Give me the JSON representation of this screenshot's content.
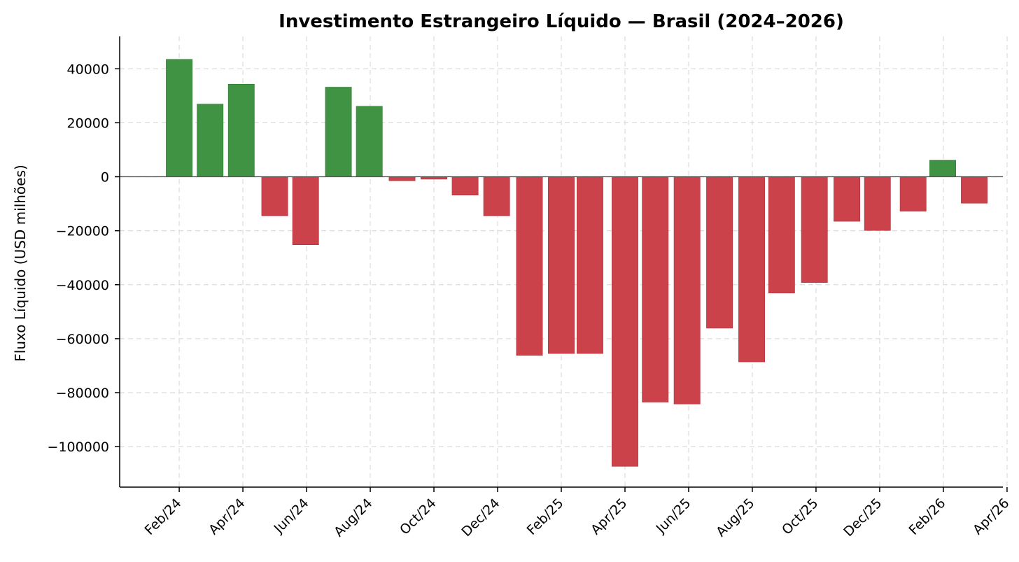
{
  "chart_data": {
    "type": "bar",
    "title": "Investimento Estrangeiro Líquido — Brasil (2024–2026)",
    "xlabel": "",
    "ylabel": "Fluxo Líquido (USD milhões)",
    "ylim": [
      -115000,
      52000
    ],
    "yticks": [
      40000,
      20000,
      0,
      -20000,
      -40000,
      -60000,
      -80000,
      -100000
    ],
    "ytick_labels": [
      "40000",
      "20000",
      "0",
      "−20000",
      "−40000",
      "−60000",
      "−80000",
      "−100000"
    ],
    "x_range_months": [
      -0.87,
      26.87
    ],
    "xticks": [
      {
        "m": 1,
        "label": "Feb/24"
      },
      {
        "m": 3,
        "label": "Apr/24"
      },
      {
        "m": 5,
        "label": "Jun/24"
      },
      {
        "m": 7,
        "label": "Aug/24"
      },
      {
        "m": 9,
        "label": "Oct/24"
      },
      {
        "m": 11,
        "label": "Dec/24"
      },
      {
        "m": 13,
        "label": "Feb/25"
      },
      {
        "m": 15,
        "label": "Apr/25"
      },
      {
        "m": 17,
        "label": "Jun/25"
      },
      {
        "m": 19,
        "label": "Aug/25"
      },
      {
        "m": 21,
        "label": "Oct/25"
      },
      {
        "m": 23,
        "label": "Dec/25"
      },
      {
        "m": 25,
        "label": "Feb/26"
      },
      {
        "m": 27,
        "label": "Apr/26"
      }
    ],
    "bars": [
      {
        "m": 1.0,
        "value": 43500
      },
      {
        "m": 1.97,
        "value": 26900
      },
      {
        "m": 2.95,
        "value": 34300
      },
      {
        "m": 4.0,
        "value": -14500
      },
      {
        "m": 4.97,
        "value": -25200
      },
      {
        "m": 6.0,
        "value": 33200
      },
      {
        "m": 6.97,
        "value": 26100
      },
      {
        "m": 8.0,
        "value": -1500
      },
      {
        "m": 9.0,
        "value": -900
      },
      {
        "m": 9.98,
        "value": -6800
      },
      {
        "m": 10.97,
        "value": -14500
      },
      {
        "m": 12.0,
        "value": -66200
      },
      {
        "m": 13.0,
        "value": -65500
      },
      {
        "m": 13.9,
        "value": -65500
      },
      {
        "m": 15.0,
        "value": -107300
      },
      {
        "m": 15.95,
        "value": -83500
      },
      {
        "m": 16.95,
        "value": -84200
      },
      {
        "m": 17.97,
        "value": -56100
      },
      {
        "m": 18.98,
        "value": -68600
      },
      {
        "m": 19.92,
        "value": -43100
      },
      {
        "m": 20.95,
        "value": -39200
      },
      {
        "m": 21.97,
        "value": -16500
      },
      {
        "m": 22.93,
        "value": -19900
      },
      {
        "m": 24.05,
        "value": -12800
      },
      {
        "m": 24.98,
        "value": 6100
      },
      {
        "m": 25.97,
        "value": -9800
      }
    ],
    "colors": {
      "positive": "#3f9342",
      "negative": "#cc424b"
    }
  }
}
